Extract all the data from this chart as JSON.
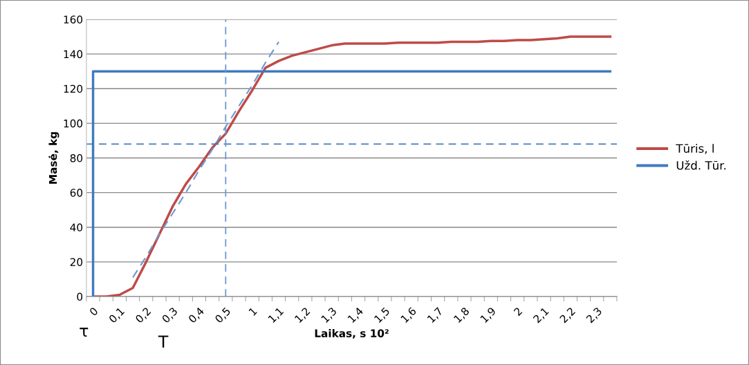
{
  "chart_data": {
    "type": "line",
    "xlabel": "Laikas, s 10²",
    "ylabel": "Masė, kg",
    "categories": [
      "0",
      null,
      "0,1",
      null,
      "0,2",
      null,
      "0,3",
      null,
      "0,4",
      null,
      "0,5",
      null,
      "1",
      null,
      "1,1",
      null,
      "1,2",
      null,
      "1,3",
      null,
      "1,4",
      null,
      "1,5",
      null,
      "1,6",
      null,
      "1,7",
      null,
      "1,8",
      null,
      "1,9",
      null,
      "2",
      null,
      "2,1",
      null,
      "2,2",
      null,
      "2,3",
      null
    ],
    "series": [
      {
        "name": "Tūris, l",
        "color": "#be4b48",
        "values": [
          0,
          0,
          1,
          5,
          20,
          36,
          52,
          65,
          75,
          86,
          94,
          107,
          119,
          132,
          136,
          139,
          141,
          143,
          145,
          146,
          146,
          146,
          146,
          146.5,
          146.5,
          146.5,
          146.5,
          147,
          147,
          147,
          147.5,
          147.5,
          148,
          148,
          148.5,
          149,
          150,
          150,
          150,
          150
        ]
      },
      {
        "name": "Užd. Tūr.",
        "color": "#3f7bc1",
        "type": "step",
        "values": [
          0,
          130,
          130,
          130,
          130,
          130,
          130,
          130,
          130,
          130,
          130,
          130,
          130,
          130,
          130,
          130,
          130,
          130,
          130,
          130,
          130,
          130,
          130,
          130,
          130,
          130,
          130,
          130,
          130,
          130,
          130,
          130,
          130,
          130,
          130,
          130,
          130,
          130,
          130,
          130
        ]
      },
      {
        "color": "#6a98d4",
        "line_style": "dashed",
        "values": [
          null,
          null,
          null,
          11,
          23,
          36,
          48,
          60,
          73,
          85,
          98,
          110,
          122,
          135,
          147,
          null,
          null,
          null,
          null,
          null,
          null,
          null,
          null,
          null,
          null,
          null,
          null,
          null,
          null,
          null,
          null,
          null,
          null,
          null,
          null,
          null,
          null,
          null,
          null,
          null
        ]
      }
    ],
    "ylim": [
      0,
      160
    ],
    "yticks": [
      0,
      20,
      40,
      60,
      80,
      100,
      120,
      140,
      160
    ],
    "grid": "y",
    "legend": "right",
    "ref_lines": [
      {
        "axis": "y",
        "value": 88,
        "color": "#3f7bc1",
        "line_style": "dashed"
      },
      {
        "axis": "x",
        "value": "0,5",
        "color": "#6a98d4",
        "line_style": "dashed"
      }
    ],
    "annotations": [
      "τ",
      "T"
    ]
  }
}
